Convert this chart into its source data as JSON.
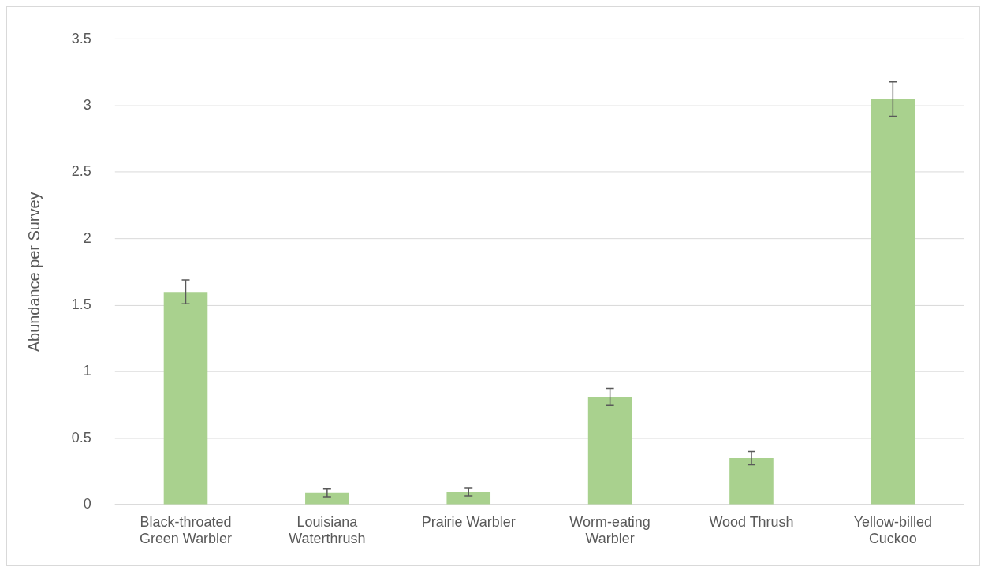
{
  "chart_data": {
    "type": "bar",
    "ylabel": "Abundance per Survey",
    "categories": [
      "Black-throated Green Warbler",
      "Louisiana Waterthrush",
      "Prairie Warbler",
      "Worm-eating Warbler",
      "Wood Thrush",
      "Yellow-billed Cuckoo"
    ],
    "values": [
      1.6,
      0.09,
      0.095,
      0.81,
      0.35,
      3.05
    ],
    "errors": [
      0.09,
      0.03,
      0.03,
      0.065,
      0.05,
      0.13
    ],
    "color": "#a9d18e",
    "ylim": [
      0,
      3.5
    ],
    "yticks": [
      0,
      0.5,
      1,
      1.5,
      2,
      2.5,
      3,
      3.5
    ],
    "grid": "y",
    "legend": false
  }
}
